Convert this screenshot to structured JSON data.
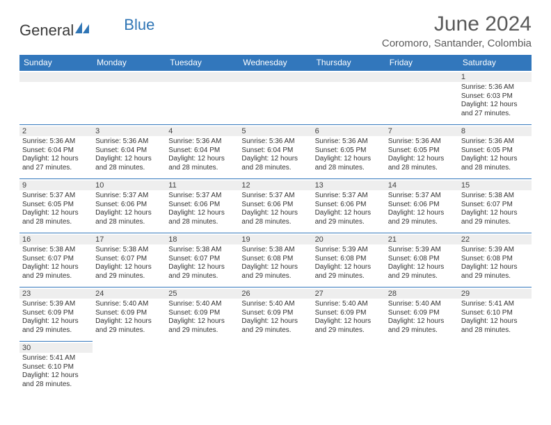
{
  "brand": {
    "part1": "General",
    "part2": "Blue"
  },
  "header": {
    "title": "June 2024",
    "location": "Coromoro, Santander, Colombia"
  },
  "colors": {
    "header_bg": "#3277bc",
    "header_text": "#ffffff",
    "daynum_bg": "#eeeeee",
    "cell_border": "#3277bc",
    "title_color": "#595959",
    "brand_blue": "#2f75b5"
  },
  "weekdays": [
    "Sunday",
    "Monday",
    "Tuesday",
    "Wednesday",
    "Thursday",
    "Friday",
    "Saturday"
  ],
  "weeks": [
    [
      {
        "blank": true
      },
      {
        "blank": true
      },
      {
        "blank": true
      },
      {
        "blank": true
      },
      {
        "blank": true
      },
      {
        "blank": true
      },
      {
        "day": "1",
        "sunrise": "Sunrise: 5:36 AM",
        "sunset": "Sunset: 6:03 PM",
        "dl1": "Daylight: 12 hours",
        "dl2": "and 27 minutes."
      }
    ],
    [
      {
        "day": "2",
        "sunrise": "Sunrise: 5:36 AM",
        "sunset": "Sunset: 6:04 PM",
        "dl1": "Daylight: 12 hours",
        "dl2": "and 27 minutes."
      },
      {
        "day": "3",
        "sunrise": "Sunrise: 5:36 AM",
        "sunset": "Sunset: 6:04 PM",
        "dl1": "Daylight: 12 hours",
        "dl2": "and 28 minutes."
      },
      {
        "day": "4",
        "sunrise": "Sunrise: 5:36 AM",
        "sunset": "Sunset: 6:04 PM",
        "dl1": "Daylight: 12 hours",
        "dl2": "and 28 minutes."
      },
      {
        "day": "5",
        "sunrise": "Sunrise: 5:36 AM",
        "sunset": "Sunset: 6:04 PM",
        "dl1": "Daylight: 12 hours",
        "dl2": "and 28 minutes."
      },
      {
        "day": "6",
        "sunrise": "Sunrise: 5:36 AM",
        "sunset": "Sunset: 6:05 PM",
        "dl1": "Daylight: 12 hours",
        "dl2": "and 28 minutes."
      },
      {
        "day": "7",
        "sunrise": "Sunrise: 5:36 AM",
        "sunset": "Sunset: 6:05 PM",
        "dl1": "Daylight: 12 hours",
        "dl2": "and 28 minutes."
      },
      {
        "day": "8",
        "sunrise": "Sunrise: 5:36 AM",
        "sunset": "Sunset: 6:05 PM",
        "dl1": "Daylight: 12 hours",
        "dl2": "and 28 minutes."
      }
    ],
    [
      {
        "day": "9",
        "sunrise": "Sunrise: 5:37 AM",
        "sunset": "Sunset: 6:05 PM",
        "dl1": "Daylight: 12 hours",
        "dl2": "and 28 minutes."
      },
      {
        "day": "10",
        "sunrise": "Sunrise: 5:37 AM",
        "sunset": "Sunset: 6:06 PM",
        "dl1": "Daylight: 12 hours",
        "dl2": "and 28 minutes."
      },
      {
        "day": "11",
        "sunrise": "Sunrise: 5:37 AM",
        "sunset": "Sunset: 6:06 PM",
        "dl1": "Daylight: 12 hours",
        "dl2": "and 28 minutes."
      },
      {
        "day": "12",
        "sunrise": "Sunrise: 5:37 AM",
        "sunset": "Sunset: 6:06 PM",
        "dl1": "Daylight: 12 hours",
        "dl2": "and 28 minutes."
      },
      {
        "day": "13",
        "sunrise": "Sunrise: 5:37 AM",
        "sunset": "Sunset: 6:06 PM",
        "dl1": "Daylight: 12 hours",
        "dl2": "and 29 minutes."
      },
      {
        "day": "14",
        "sunrise": "Sunrise: 5:37 AM",
        "sunset": "Sunset: 6:06 PM",
        "dl1": "Daylight: 12 hours",
        "dl2": "and 29 minutes."
      },
      {
        "day": "15",
        "sunrise": "Sunrise: 5:38 AM",
        "sunset": "Sunset: 6:07 PM",
        "dl1": "Daylight: 12 hours",
        "dl2": "and 29 minutes."
      }
    ],
    [
      {
        "day": "16",
        "sunrise": "Sunrise: 5:38 AM",
        "sunset": "Sunset: 6:07 PM",
        "dl1": "Daylight: 12 hours",
        "dl2": "and 29 minutes."
      },
      {
        "day": "17",
        "sunrise": "Sunrise: 5:38 AM",
        "sunset": "Sunset: 6:07 PM",
        "dl1": "Daylight: 12 hours",
        "dl2": "and 29 minutes."
      },
      {
        "day": "18",
        "sunrise": "Sunrise: 5:38 AM",
        "sunset": "Sunset: 6:07 PM",
        "dl1": "Daylight: 12 hours",
        "dl2": "and 29 minutes."
      },
      {
        "day": "19",
        "sunrise": "Sunrise: 5:38 AM",
        "sunset": "Sunset: 6:08 PM",
        "dl1": "Daylight: 12 hours",
        "dl2": "and 29 minutes."
      },
      {
        "day": "20",
        "sunrise": "Sunrise: 5:39 AM",
        "sunset": "Sunset: 6:08 PM",
        "dl1": "Daylight: 12 hours",
        "dl2": "and 29 minutes."
      },
      {
        "day": "21",
        "sunrise": "Sunrise: 5:39 AM",
        "sunset": "Sunset: 6:08 PM",
        "dl1": "Daylight: 12 hours",
        "dl2": "and 29 minutes."
      },
      {
        "day": "22",
        "sunrise": "Sunrise: 5:39 AM",
        "sunset": "Sunset: 6:08 PM",
        "dl1": "Daylight: 12 hours",
        "dl2": "and 29 minutes."
      }
    ],
    [
      {
        "day": "23",
        "sunrise": "Sunrise: 5:39 AM",
        "sunset": "Sunset: 6:09 PM",
        "dl1": "Daylight: 12 hours",
        "dl2": "and 29 minutes."
      },
      {
        "day": "24",
        "sunrise": "Sunrise: 5:40 AM",
        "sunset": "Sunset: 6:09 PM",
        "dl1": "Daylight: 12 hours",
        "dl2": "and 29 minutes."
      },
      {
        "day": "25",
        "sunrise": "Sunrise: 5:40 AM",
        "sunset": "Sunset: 6:09 PM",
        "dl1": "Daylight: 12 hours",
        "dl2": "and 29 minutes."
      },
      {
        "day": "26",
        "sunrise": "Sunrise: 5:40 AM",
        "sunset": "Sunset: 6:09 PM",
        "dl1": "Daylight: 12 hours",
        "dl2": "and 29 minutes."
      },
      {
        "day": "27",
        "sunrise": "Sunrise: 5:40 AM",
        "sunset": "Sunset: 6:09 PM",
        "dl1": "Daylight: 12 hours",
        "dl2": "and 29 minutes."
      },
      {
        "day": "28",
        "sunrise": "Sunrise: 5:40 AM",
        "sunset": "Sunset: 6:09 PM",
        "dl1": "Daylight: 12 hours",
        "dl2": "and 29 minutes."
      },
      {
        "day": "29",
        "sunrise": "Sunrise: 5:41 AM",
        "sunset": "Sunset: 6:10 PM",
        "dl1": "Daylight: 12 hours",
        "dl2": "and 28 minutes."
      }
    ],
    [
      {
        "day": "30",
        "sunrise": "Sunrise: 5:41 AM",
        "sunset": "Sunset: 6:10 PM",
        "dl1": "Daylight: 12 hours",
        "dl2": "and 28 minutes."
      },
      {
        "blank": true
      },
      {
        "blank": true
      },
      {
        "blank": true
      },
      {
        "blank": true
      },
      {
        "blank": true
      },
      {
        "blank": true
      }
    ]
  ]
}
